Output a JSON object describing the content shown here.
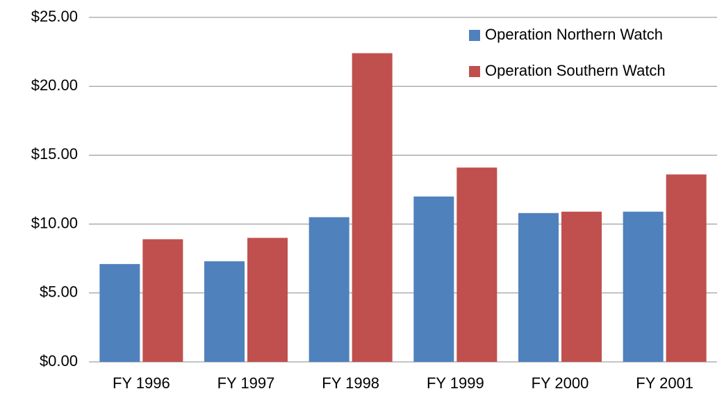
{
  "chart_data": {
    "type": "bar",
    "categories": [
      "FY 1996",
      "FY 1997",
      "FY 1998",
      "FY 1999",
      "FY 2000",
      "FY 2001"
    ],
    "series": [
      {
        "name": "Operation Northern Watch",
        "color": "#4f81bd",
        "values": [
          7.1,
          7.3,
          10.5,
          12.0,
          10.8,
          10.9
        ]
      },
      {
        "name": "Operation Southern Watch",
        "color": "#c0504d",
        "values": [
          8.9,
          9.0,
          22.4,
          14.1,
          10.9,
          13.6
        ]
      }
    ],
    "ylim": [
      0,
      25
    ],
    "yticks": [
      {
        "value": 0,
        "label": "$0.00"
      },
      {
        "value": 5,
        "label": "$5.00"
      },
      {
        "value": 10,
        "label": "$10.00"
      },
      {
        "value": 15,
        "label": "$15.00"
      },
      {
        "value": 20,
        "label": "$20.00"
      },
      {
        "value": 25,
        "label": "$25.00"
      }
    ],
    "grid": true,
    "legend": "top-right"
  }
}
